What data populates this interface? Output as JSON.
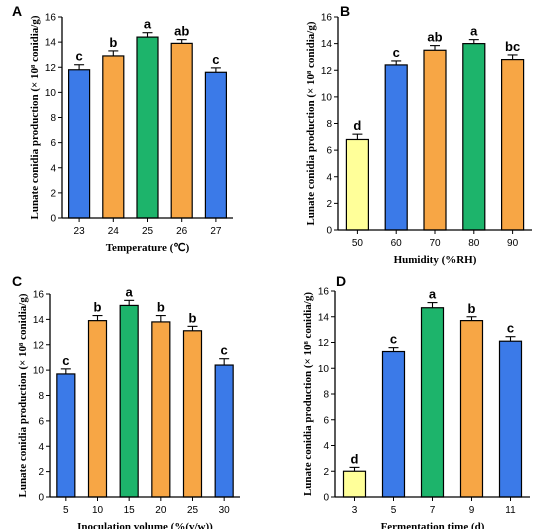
{
  "colors": {
    "blue": "#3b7ae8",
    "orange": "#f7a645",
    "green": "#1db46b",
    "yellow": "#ffff99"
  },
  "chart_data": [
    {
      "panel": "A",
      "type": "bar",
      "xlabel": "Temperature (℃)",
      "ylabel": "Lunate conidia production (× 10⁸ conidia/g)",
      "ylim": [
        0,
        16
      ],
      "yticks": [
        0,
        2,
        4,
        6,
        8,
        10,
        12,
        14,
        16
      ],
      "categories": [
        "23",
        "24",
        "25",
        "26",
        "27"
      ],
      "values": [
        11.8,
        12.9,
        14.4,
        13.9,
        11.6
      ],
      "errors": [
        0.4,
        0.4,
        0.35,
        0.3,
        0.35
      ],
      "labels": [
        "c",
        "b",
        "a",
        "ab",
        "c"
      ],
      "bar_colors": [
        "blue",
        "orange",
        "green",
        "orange",
        "blue"
      ]
    },
    {
      "panel": "B",
      "type": "bar",
      "xlabel": "Humidity (%RH)",
      "ylabel": "Lunate conidia production (× 10⁸ conidia/g)",
      "ylim": [
        0,
        16
      ],
      "yticks": [
        0,
        2,
        4,
        6,
        8,
        10,
        12,
        14,
        16
      ],
      "categories": [
        "50",
        "60",
        "70",
        "80",
        "90"
      ],
      "values": [
        6.8,
        12.4,
        13.5,
        14.0,
        12.8
      ],
      "errors": [
        0.4,
        0.3,
        0.35,
        0.3,
        0.35
      ],
      "labels": [
        "d",
        "c",
        "ab",
        "a",
        "bc"
      ],
      "bar_colors": [
        "yellow",
        "blue",
        "orange",
        "green",
        "orange"
      ]
    },
    {
      "panel": "C",
      "type": "bar",
      "xlabel": "Inoculation volume (%(v/w))",
      "ylabel": "Lunate conidia production (× 10⁸ conidia/g)",
      "ylim": [
        0,
        16
      ],
      "yticks": [
        0,
        2,
        4,
        6,
        8,
        10,
        12,
        14,
        16
      ],
      "categories": [
        "5",
        "10",
        "15",
        "20",
        "25",
        "30"
      ],
      "values": [
        9.7,
        13.9,
        15.1,
        13.8,
        13.1,
        10.4
      ],
      "errors": [
        0.4,
        0.4,
        0.4,
        0.5,
        0.35,
        0.5
      ],
      "labels": [
        "c",
        "b",
        "a",
        "b",
        "b",
        "c"
      ],
      "bar_colors": [
        "blue",
        "orange",
        "green",
        "orange",
        "orange",
        "blue"
      ]
    },
    {
      "panel": "D",
      "type": "bar",
      "xlabel": "Fermentation time (d)",
      "ylabel": "Lunate conidia production (× 10⁸ conidia/g)",
      "ylim": [
        0,
        16
      ],
      "yticks": [
        0,
        2,
        4,
        6,
        8,
        10,
        12,
        14,
        16
      ],
      "categories": [
        "3",
        "5",
        "7",
        "9",
        "11"
      ],
      "values": [
        2.0,
        11.3,
        14.7,
        13.7,
        12.1
      ],
      "errors": [
        0.3,
        0.3,
        0.4,
        0.3,
        0.35
      ],
      "labels": [
        "d",
        "c",
        "a",
        "b",
        "c"
      ],
      "bar_colors": [
        "yellow",
        "blue",
        "green",
        "orange",
        "blue"
      ]
    }
  ]
}
